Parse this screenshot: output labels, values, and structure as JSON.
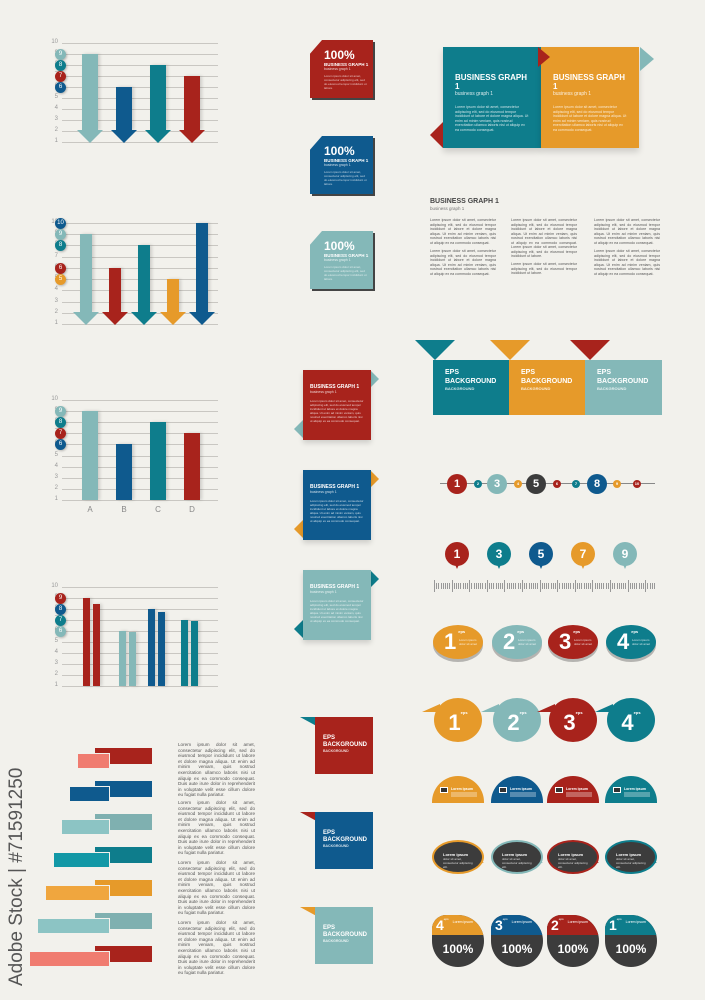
{
  "colors": {
    "red": "#a8231c",
    "blue": "#0f5a8e",
    "teal": "#0e7d8c",
    "light_teal": "#84b8b8",
    "orange": "#e69a2a",
    "salmon": "#f07c70",
    "dark": "#3c3c3c",
    "background": "#f2f1ec"
  },
  "chart_data": [
    {
      "type": "bar",
      "style": "arrow",
      "yticks": [
        "1",
        "2",
        "3",
        "4",
        "5",
        "6",
        "7",
        "8",
        "9",
        "10"
      ],
      "ylim": [
        1,
        10
      ],
      "grid": true,
      "legend": [
        {
          "label": "9",
          "color": "#84b8b8"
        },
        {
          "label": "8",
          "color": "#0e7d8c"
        },
        {
          "label": "7",
          "color": "#a8231c"
        },
        {
          "label": "6",
          "color": "#0f5a8e"
        }
      ],
      "values": [
        9,
        6,
        8,
        7
      ],
      "bar_colors": [
        "#84b8b8",
        "#0f5a8e",
        "#0e7d8c",
        "#a8231c"
      ]
    },
    {
      "type": "bar",
      "style": "arrow",
      "yticks": [
        "1",
        "2",
        "3",
        "4",
        "5",
        "6",
        "7",
        "8",
        "9",
        "10"
      ],
      "ylim": [
        1,
        10
      ],
      "grid": true,
      "legend": [
        {
          "label": "10",
          "color": "#0f5a8e"
        },
        {
          "label": "9",
          "color": "#84b8b8"
        },
        {
          "label": "8",
          "color": "#0e7d8c"
        },
        {
          "label": "6",
          "color": "#a8231c"
        },
        {
          "label": "5",
          "color": "#e69a2a"
        }
      ],
      "values": [
        9,
        6,
        8,
        5,
        10
      ],
      "bar_colors": [
        "#84b8b8",
        "#a8231c",
        "#0e7d8c",
        "#e69a2a",
        "#0f5a8e"
      ]
    },
    {
      "type": "bar",
      "yticks": [
        "1",
        "2",
        "3",
        "4",
        "5",
        "6",
        "7",
        "8",
        "9",
        "10"
      ],
      "ylim": [
        1,
        10
      ],
      "grid": true,
      "categories": [
        "A",
        "B",
        "C",
        "D"
      ],
      "legend": [
        {
          "label": "9",
          "color": "#84b8b8"
        },
        {
          "label": "8",
          "color": "#0e7d8c"
        },
        {
          "label": "7",
          "color": "#a8231c"
        },
        {
          "label": "6",
          "color": "#0f5a8e"
        }
      ],
      "values": [
        9,
        6,
        8,
        7
      ],
      "bar_colors": [
        "#84b8b8",
        "#0f5a8e",
        "#0e7d8c",
        "#a8231c"
      ]
    },
    {
      "type": "bar",
      "style": "grouped",
      "yticks": [
        "1",
        "2",
        "3",
        "4",
        "5",
        "6",
        "7",
        "8",
        "9",
        "10"
      ],
      "ylim": [
        1,
        10
      ],
      "grid": true,
      "legend": [
        {
          "label": "9",
          "color": "#a8231c"
        },
        {
          "label": "8",
          "color": "#0f5a8e"
        },
        {
          "label": "7",
          "color": "#0e7d8c"
        },
        {
          "label": "6",
          "color": "#84b8b8"
        }
      ],
      "series": [
        {
          "values": [
            9,
            6,
            8,
            7
          ]
        },
        {
          "values": [
            8.5,
            5.9,
            7.7,
            6.9
          ]
        }
      ],
      "bar_colors": [
        "#a8231c",
        "#84b8b8",
        "#0f5a8e",
        "#0e7d8c"
      ]
    }
  ],
  "flags": [
    {
      "pct": "100%",
      "title": "BUSINESS GRAPH 1",
      "sub": "business graph 1",
      "text": "Lorem ipsum dolor sit amet, consectetur adipiscing elit, sed do eiusmod tempor incididunt ut labore",
      "color": "#a8231c"
    },
    {
      "pct": "100%",
      "title": "BUSINESS GRAPH 1",
      "sub": "business graph 1",
      "text": "Lorem ipsum dolor sit amet, consectetur adipiscing elit, sed do eiusmod tempor incididunt ut labore",
      "color": "#0f5a8e"
    },
    {
      "pct": "100%",
      "title": "BUSINESS GRAPH 1",
      "sub": "business graph 1",
      "text": "Lorem ipsum dolor sit amet, consectetur adipiscing elit, sed do eiusmod tempor incididunt ut labore",
      "color": "#84b8b8"
    }
  ],
  "boxes": [
    {
      "title": "BUSINESS GRAPH 1",
      "sub": "business graph 1",
      "text": "Lorem ipsum dolor sit amet, consectetur adipiscing elit, sed do eiusmod tempor incididunt ut labore et dolore magna aliqua. Ut enim ad minim veniam, quis nostrud exercitation ullamco laboris nisi ut aliquip ex ea commodo consequat.",
      "color": "#a8231c",
      "tab": "#84b8b8"
    },
    {
      "title": "BUSINESS GRAPH 1",
      "sub": "business graph 1",
      "text": "Lorem ipsum dolor sit amet, consectetur adipiscing elit, sed do eiusmod tempor incididunt ut labore et dolore magna aliqua. Ut enim ad minim veniam, quis nostrud exercitation ullamco laboris nisi ut aliquip ex ea commodo consequat.",
      "color": "#0f5a8e",
      "tab": "#e69a2a"
    },
    {
      "title": "BUSINESS GRAPH 1",
      "sub": "business graph 1",
      "text": "Lorem ipsum dolor sit amet, consectetur adipiscing elit, sed do eiusmod tempor incididunt ut labore et dolore magna aliqua. Ut enim ad minim veniam, quis nostrud exercitation ullamco laboris nisi ut aliquip ex ea commodo consequat.",
      "color": "#84b8b8",
      "tab": "#0e7d8c"
    }
  ],
  "eps_squares": [
    {
      "title": "EPS BACKGROUND",
      "sub": "BACKGROUND",
      "color": "#a8231c",
      "tab": "#0e7d8c"
    },
    {
      "title": "EPS BACKGROUND",
      "sub": "BACKGROUND",
      "color": "#0f5a8e",
      "tab": "#a8231c"
    },
    {
      "title": "EPS BACKGROUND",
      "sub": "BACKGROUND",
      "color": "#84b8b8",
      "tab": "#e69a2a"
    }
  ],
  "top_panels": [
    {
      "title": "BUSINESS GRAPH 1",
      "sub": "business graph 1",
      "text": "Lorem ipsum dolor sit amet, consectetur adipiscing elit, sed do eiusmod tempor incididunt ut labore et dolore magna aliqua. Ut enim ad minim veniam, quis nostrud exercitation ullamco laboris nisi ut aliquip ex ea commodo consequat.",
      "color": "#0e7d8c"
    },
    {
      "title": "BUSINESS GRAPH 1",
      "sub": "business graph 1",
      "text": "Lorem ipsum dolor sit amet, consectetur adipiscing elit, sed do eiusmod tempor incididunt ut labore et dolore magna aliqua. Ut enim ad minim veniam, quis nostrud exercitation ullamco laboris nisi ut aliquip ex ea commodo consequat.",
      "color": "#e69a2a"
    }
  ],
  "article": {
    "title": "BUSINESS GRAPH 1",
    "sub": "business graph 1",
    "para": "Lorem ipsum dolor sit amet, consectetur adipiscing elit, sed do eiusmod tempor incididunt ut labore et dolore magna aliqua. Ut enim ad minim veniam, quis nostrud exercitation ullamco laboris nisi ut aliquip ex ea commodo consequat.",
    "short": "Lorem ipsum dolor sit amet, consectetur adipiscing elit, sed do eiusmod tempor incididunt ut labore."
  },
  "eps_banner": [
    {
      "title": "EPS BACKGROUND",
      "sub": "BACKGROUND",
      "color": "#0e7d8c"
    },
    {
      "title": "EPS BACKGROUND",
      "sub": "BACKGROUND",
      "color": "#e69a2a"
    },
    {
      "title": "EPS BACKGROUND",
      "sub": "BACKGROUND",
      "color": "#84b8b8"
    }
  ],
  "timeline": [
    {
      "n": "1",
      "color": "#a8231c",
      "big": true
    },
    {
      "n": "2",
      "color": "#0e7d8c"
    },
    {
      "n": "3",
      "color": "#84b8b8",
      "big": true
    },
    {
      "n": "4",
      "color": "#e69a2a"
    },
    {
      "n": "5",
      "color": "#3c3c3c",
      "big": true
    },
    {
      "n": "6",
      "color": "#a8231c"
    },
    {
      "n": "7",
      "color": "#0e7d8c"
    },
    {
      "n": "8",
      "color": "#0f5a8e",
      "big": true
    },
    {
      "n": "9",
      "color": "#e69a2a"
    },
    {
      "n": "10",
      "color": "#a8231c"
    }
  ],
  "pins": [
    {
      "n": "1",
      "color": "#a8231c"
    },
    {
      "n": "3",
      "color": "#0e7d8c"
    },
    {
      "n": "5",
      "color": "#0f5a8e"
    },
    {
      "n": "7",
      "color": "#e69a2a"
    },
    {
      "n": "9",
      "color": "#84b8b8"
    }
  ],
  "bubbles_a": [
    {
      "n": "1",
      "sup": "eps",
      "color": "#e69a2a"
    },
    {
      "n": "2",
      "sup": "eps",
      "color": "#84b8b8"
    },
    {
      "n": "3",
      "sup": "eps",
      "color": "#a8231c"
    },
    {
      "n": "4",
      "sup": "eps",
      "color": "#0e7d8c"
    }
  ],
  "bubbles_a_text": "Lorem ipsum dolor sit amet",
  "bubbles_b": [
    {
      "n": "1",
      "sup": "eps",
      "color": "#e69a2a"
    },
    {
      "n": "2",
      "sup": "eps",
      "color": "#84b8b8"
    },
    {
      "n": "3",
      "sup": "eps",
      "color": "#a8231c"
    },
    {
      "n": "4",
      "sup": "eps",
      "color": "#0e7d8c"
    }
  ],
  "domes": [
    {
      "label": "Lorem ipsum",
      "icon": "monitor-icon",
      "color": "#e69a2a"
    },
    {
      "label": "Lorem ipsum",
      "icon": "laptop-icon",
      "color": "#0f5a8e"
    },
    {
      "label": "Lorem ipsum",
      "icon": "tablet-icon",
      "color": "#a8231c"
    },
    {
      "label": "Lorem ipsum",
      "icon": "monitor-icon",
      "color": "#0e7d8c"
    }
  ],
  "speech": [
    {
      "title": "Lorem ipsum",
      "text": "dolor sit amet, consectetur adipiscing elit.",
      "color": "#e69a2a"
    },
    {
      "title": "Lorem ipsum",
      "text": "dolor sit amet, consectetur adipiscing elit.",
      "color": "#84b8b8"
    },
    {
      "title": "Lorem ipsum",
      "text": "dolor sit amet, consectetur adipiscing elit.",
      "color": "#a8231c"
    },
    {
      "title": "Lorem ipsum",
      "text": "dolor sit amet, consectetur adipiscing elit.",
      "color": "#0e7d8c"
    }
  ],
  "steps": [
    {
      "n": "4",
      "sup": "eps",
      "label": "Lorem ipsum",
      "pct": "100%",
      "color": "#e69a2a"
    },
    {
      "n": "3",
      "sup": "eps",
      "label": "Lorem ipsum",
      "pct": "100%",
      "color": "#0f5a8e"
    },
    {
      "n": "2",
      "sup": "eps",
      "label": "Lorem ipsum",
      "pct": "100%",
      "color": "#a8231c"
    },
    {
      "n": "1",
      "sup": "eps",
      "label": "Lorem ipsum",
      "pct": "100%",
      "color": "#0e7d8c"
    }
  ],
  "ribbons": [
    {
      "back": "#a8231c",
      "front": "#f07c70"
    },
    {
      "back": "#0f5a8e",
      "front": "#0f5a8e"
    },
    {
      "back": "#7fb0b0",
      "front": "#8cc4c4"
    },
    {
      "back": "#0e7d8c",
      "front": "#1298a6"
    },
    {
      "back": "#e69a2a",
      "front": "#f0a63e"
    },
    {
      "back": "#7fb0b0",
      "front": "#8cc4c4"
    },
    {
      "back": "#a8231c",
      "front": "#f07c70"
    }
  ],
  "ribbon_text": "Lorem ipsum dolor sit amet, consectetur adipiscing elit, sed do eiusmod tempor incididunt ut labore et dolore magna aliqua. Ut enim ad minim veniam, quis nostrud exercitation ullamco laboris nisi ut aliquip ex ea commodo consequat. Duis aute irure dolor in reprehenderit in voluptate velit esse cillum dolore eu fugiat nulla pariatur.",
  "watermark": "Adobe Stock | #71591250"
}
